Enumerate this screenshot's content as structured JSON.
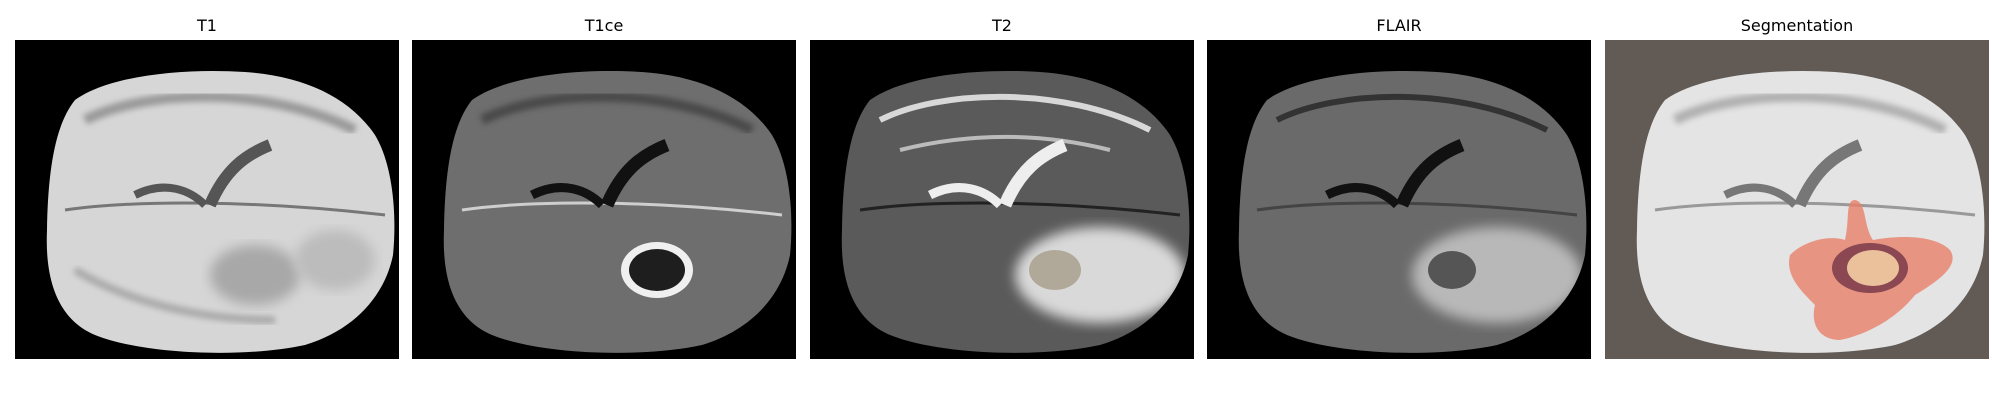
{
  "panels": [
    {
      "id": "t1",
      "title": "T1"
    },
    {
      "id": "t1ce",
      "title": "T1ce"
    },
    {
      "id": "t2",
      "title": "T2"
    },
    {
      "id": "flair",
      "title": "FLAIR"
    },
    {
      "id": "seg",
      "title": "Segmentation"
    }
  ],
  "colors": {
    "background_black": "#000000",
    "segmentation_background": "#625a55",
    "edema": "#e8806a",
    "necrotic_core": "#f0c8a0",
    "enhancing_tumor": "#7a3a4a"
  }
}
